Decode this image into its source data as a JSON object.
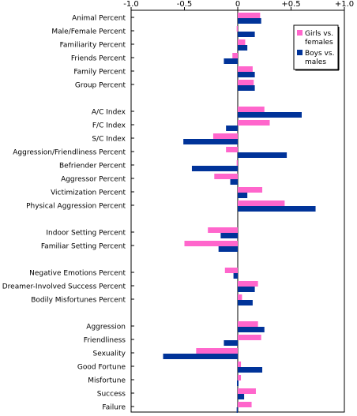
{
  "chart_data": {
    "type": "bar",
    "orientation": "horizontal",
    "xlim": [
      -1.0,
      1.0
    ],
    "x_ticks": [
      -1.0,
      -0.5,
      0,
      0.5,
      1.0
    ],
    "x_tick_labels": [
      "-1.0",
      "-0.5",
      "0",
      "+0.5",
      "+1.0"
    ],
    "grid": false,
    "legend_position": "top-right",
    "categories": [
      "Animal Percent",
      "Male/Female Percent",
      "Familiarity Percent",
      "Friends Percent",
      "Family Percent",
      "Group Percent",
      "",
      "A/C Index",
      "F/C Index",
      "S/C Index",
      "Aggression/Friendliness Percent",
      "Befriender Percent",
      "Aggressor Percent",
      "Victimization Percent",
      "Physical Aggression Percent",
      "",
      "Indoor Setting Percent",
      "Familiar Setting Percent",
      "",
      "Negative Emotions Percent",
      "Dreamer-Involved Success Percent",
      "Bodily Misfortunes Percent",
      "",
      "Aggression",
      "Friendliness",
      "Sexuality",
      "Good Fortune",
      "Misfortune",
      "Success",
      "Failure"
    ],
    "series": [
      {
        "name": "Girls vs. females",
        "color": "#ff66cc",
        "values": [
          0.21,
          -0.01,
          0.07,
          -0.05,
          0.14,
          0.15,
          null,
          0.25,
          0.3,
          -0.23,
          -0.11,
          -0.01,
          -0.22,
          0.23,
          0.44,
          null,
          -0.28,
          -0.5,
          null,
          -0.12,
          0.19,
          0.04,
          null,
          0.19,
          0.22,
          -0.39,
          0.03,
          0.03,
          0.17,
          0.13
        ]
      },
      {
        "name": "Boys vs. males",
        "color": "#003399",
        "values": [
          0.22,
          0.16,
          0.09,
          -0.13,
          0.16,
          0.16,
          null,
          0.6,
          -0.11,
          -0.51,
          0.46,
          -0.43,
          -0.07,
          0.09,
          0.73,
          null,
          -0.16,
          -0.18,
          null,
          -0.04,
          0.16,
          0.14,
          null,
          0.25,
          -0.13,
          -0.7,
          0.23,
          0.0,
          0.06,
          -0.01
        ]
      }
    ],
    "legend": {
      "entries": [
        {
          "label_lines": [
            "Girls vs.",
            "females"
          ],
          "color": "#ff66cc"
        },
        {
          "label_lines": [
            "Boys vs.",
            "males"
          ],
          "color": "#003399"
        }
      ]
    }
  }
}
